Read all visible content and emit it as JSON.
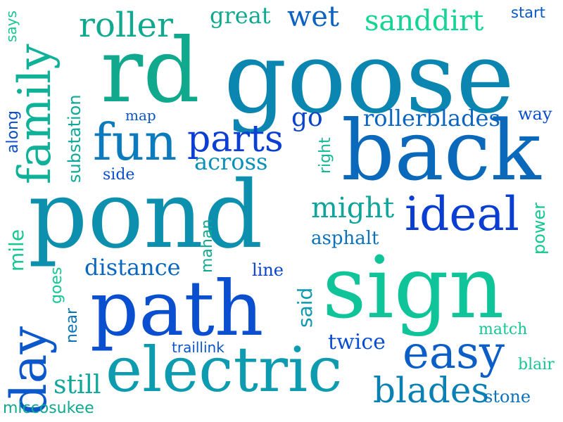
{
  "words": [
    {
      "id": "goose",
      "text": "goose",
      "color": "#0b86b0"
    },
    {
      "id": "rd",
      "text": "rd",
      "color": "#10a98e"
    },
    {
      "id": "back",
      "text": "back",
      "color": "#0a69ba"
    },
    {
      "id": "pond",
      "text": "pond",
      "color": "#0d8fae"
    },
    {
      "id": "sign",
      "text": "sign",
      "color": "#10c49a"
    },
    {
      "id": "path",
      "text": "path",
      "color": "#0a4fcf"
    },
    {
      "id": "electric",
      "text": "electric",
      "color": "#0d9bb0"
    },
    {
      "id": "family",
      "text": "family",
      "color": "#10b199"
    },
    {
      "id": "fun",
      "text": "fun",
      "color": "#0c7bbd"
    },
    {
      "id": "parts",
      "text": "parts",
      "color": "#0a3ed6"
    },
    {
      "id": "ideal",
      "text": "ideal",
      "color": "#0a3ed2"
    },
    {
      "id": "easy",
      "text": "easy",
      "color": "#0b5ec7"
    },
    {
      "id": "day",
      "text": "day",
      "color": "#0a58cc"
    },
    {
      "id": "blades",
      "text": "blades",
      "color": "#0b80b3"
    },
    {
      "id": "roller",
      "text": "roller",
      "color": "#10a990"
    },
    {
      "id": "sanddirt",
      "text": "sanddirt",
      "color": "#14d492"
    },
    {
      "id": "great",
      "text": "great",
      "color": "#10a990"
    },
    {
      "id": "wet",
      "text": "wet",
      "color": "#0b62c0"
    },
    {
      "id": "start",
      "text": "start",
      "color": "#0a57c9"
    },
    {
      "id": "says",
      "text": "says",
      "color": "#16c790"
    },
    {
      "id": "substation",
      "text": "substation",
      "color": "#10a998"
    },
    {
      "id": "map",
      "text": "map",
      "color": "#0a56c6"
    },
    {
      "id": "go",
      "text": "go",
      "color": "#0a44cd"
    },
    {
      "id": "rollerblades",
      "text": "rollerblades",
      "color": "#0a64c1"
    },
    {
      "id": "way",
      "text": "way",
      "color": "#0a4ecc"
    },
    {
      "id": "along",
      "text": "along",
      "color": "#0a50ca"
    },
    {
      "id": "across",
      "text": "across",
      "color": "#0c90b5"
    },
    {
      "id": "right",
      "text": "right",
      "color": "#10b996"
    },
    {
      "id": "side",
      "text": "side",
      "color": "#0a4ed0"
    },
    {
      "id": "might",
      "text": "might",
      "color": "#10a49a"
    },
    {
      "id": "power",
      "text": "power",
      "color": "#16c790"
    },
    {
      "id": "mile",
      "text": "mile",
      "color": "#16c790"
    },
    {
      "id": "mahan",
      "text": "mahan",
      "color": "#10a990"
    },
    {
      "id": "asphalt",
      "text": "asphalt",
      "color": "#0b72bd"
    },
    {
      "id": "distance",
      "text": "distance",
      "color": "#0a67c0"
    },
    {
      "id": "line",
      "text": "line",
      "color": "#0a44cd"
    },
    {
      "id": "goes",
      "text": "goes",
      "color": "#16c790"
    },
    {
      "id": "said",
      "text": "said",
      "color": "#0d9ab0"
    },
    {
      "id": "near",
      "text": "near",
      "color": "#0c74b9"
    },
    {
      "id": "twice",
      "text": "twice",
      "color": "#0a4ecf"
    },
    {
      "id": "match",
      "text": "match",
      "color": "#16c790"
    },
    {
      "id": "traillink",
      "text": "traillink",
      "color": "#0a56c8"
    },
    {
      "id": "blair",
      "text": "blair",
      "color": "#16c790"
    },
    {
      "id": "still",
      "text": "still",
      "color": "#0fa69b"
    },
    {
      "id": "stone",
      "text": "stone",
      "color": "#0c72bd"
    },
    {
      "id": "miccosukee",
      "text": "miccosukee",
      "color": "#10a990"
    }
  ]
}
